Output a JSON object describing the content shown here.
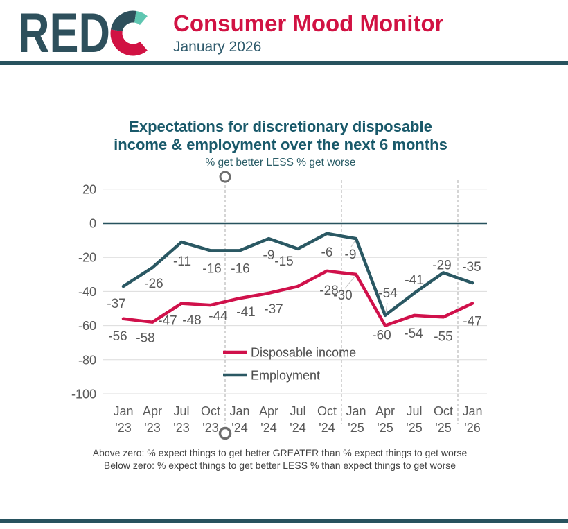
{
  "header": {
    "brand": "REDC",
    "logo_text": "RED",
    "title": "Consumer Mood Monitor",
    "date": "January 2026"
  },
  "colors": {
    "teal_rule": "#27525E",
    "header_crimson": "#D11243",
    "logo_teal": "#2E505C",
    "logo_mint": "#5EC6B1",
    "line_red": "#D0114B",
    "line_teal": "#2A5863",
    "grid_gray": "#DCDCDC",
    "dashed_gray": "#ABABAB",
    "label_gray": "#595959",
    "title_teal": "#19596A"
  },
  "chart_data": {
    "type": "line",
    "title": [
      "Expectations for discretionary disposable",
      "income & employment over the next 6 months"
    ],
    "subtitle": "% get better LESS % get worse",
    "categories_month": [
      "Jan",
      "Apr",
      "Jul",
      "Oct",
      "Jan",
      "Apr",
      "Jul",
      "Oct",
      "Jan",
      "Apr",
      "Jul",
      "Oct",
      "Jan"
    ],
    "categories_year": [
      "'23",
      "'23",
      "'23",
      "'23",
      "'24",
      "'24",
      "'24",
      "'24",
      "'25",
      "'25",
      "'25",
      "'25",
      "'26"
    ],
    "series": [
      {
        "name": "Disposable income",
        "color": "#D0114B",
        "values": [
          -56,
          -58,
          -47,
          -48,
          -44,
          -41,
          -37,
          -28,
          -30,
          -60,
          -54,
          -55,
          -47
        ]
      },
      {
        "name": "Employment",
        "color": "#2A5863",
        "values": [
          -37,
          -26,
          -11,
          -16,
          -16,
          -9,
          -15,
          -6,
          -9,
          -54,
          -41,
          -29,
          -35
        ]
      }
    ],
    "y_ticks": [
      20,
      0,
      -20,
      -40,
      -60,
      -80,
      -100
    ],
    "ylim": [
      -100,
      20
    ],
    "grid": true,
    "zero_line": true,
    "year_separator_positions": [
      3.5,
      7.5,
      11.5
    ],
    "legend_position": "inside-bottom-left"
  },
  "footnote": {
    "line1": "Above zero: % expect things to get better GREATER than % expect things to get worse",
    "line2": "Below zero: % expect things to get better LESS % than expect things to get worse"
  }
}
